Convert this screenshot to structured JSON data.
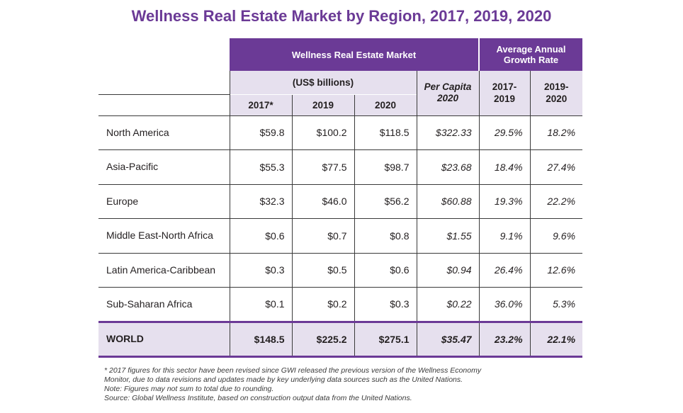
{
  "title": "Wellness Real Estate Market by Region, 2017, 2019, 2020",
  "colors": {
    "accent": "#6b3a96",
    "header_light": "#e6e0ee"
  },
  "header": {
    "group1": "Wellness Real Estate Market",
    "group2": "Average Annual Growth Rate",
    "units": "(US$ billions)",
    "per_capita": "Per Capita 2020",
    "y2017": "2017*",
    "y2019": "2019",
    "y2020": "2020",
    "g1719": "2017-2019",
    "g1920": "2019-2020"
  },
  "rows": [
    {
      "region": "North America",
      "v2017": "$59.8",
      "v2019": "$100.2",
      "v2020": "$118.5",
      "per_capita": "$322.33",
      "g1719": "29.5%",
      "g1920": "18.2%"
    },
    {
      "region": "Asia-Pacific",
      "v2017": "$55.3",
      "v2019": "$77.5",
      "v2020": "$98.7",
      "per_capita": "$23.68",
      "g1719": "18.4%",
      "g1920": "27.4%"
    },
    {
      "region": "Europe",
      "v2017": "$32.3",
      "v2019": "$46.0",
      "v2020": "$56.2",
      "per_capita": "$60.88",
      "g1719": "19.3%",
      "g1920": "22.2%"
    },
    {
      "region": "Middle East-North Africa",
      "v2017": "$0.6",
      "v2019": "$0.7",
      "v2020": "$0.8",
      "per_capita": "$1.55",
      "g1719": "9.1%",
      "g1920": "9.6%"
    },
    {
      "region": "Latin America-Caribbean",
      "v2017": "$0.3",
      "v2019": "$0.5",
      "v2020": "$0.6",
      "per_capita": "$0.94",
      "g1719": "26.4%",
      "g1920": "12.6%"
    },
    {
      "region": "Sub-Saharan Africa",
      "v2017": "$0.1",
      "v2019": "$0.2",
      "v2020": "$0.3",
      "per_capita": "$0.22",
      "g1719": "36.0%",
      "g1920": "5.3%"
    }
  ],
  "world": {
    "region": "WORLD",
    "v2017": "$148.5",
    "v2019": "$225.2",
    "v2020": "$275.1",
    "per_capita": "$35.47",
    "g1719": "23.2%",
    "g1920": "22.1%"
  },
  "footnotes": [
    "* 2017 figures for this sector have been revised since GWI released the previous version of the Wellness Economy",
    "Monitor, due to data revisions and updates made by key underlying data sources such as the United Nations.",
    "Note: Figures may not sum to total due to rounding.",
    "Source: Global Wellness Institute, based on construction output data from the United Nations."
  ],
  "chart_data": {
    "type": "table",
    "title": "Wellness Real Estate Market by Region, 2017, 2019, 2020",
    "columns": [
      "2017*",
      "2019",
      "2020",
      "Per Capita 2020",
      "2017-2019",
      "2019-2020"
    ],
    "rows": [
      [
        "North America",
        59.8,
        100.2,
        118.5,
        322.33,
        29.5,
        18.2
      ],
      [
        "Asia-Pacific",
        55.3,
        77.5,
        98.7,
        23.68,
        18.4,
        27.4
      ],
      [
        "Europe",
        32.3,
        46.0,
        56.2,
        60.88,
        19.3,
        22.2
      ],
      [
        "Middle East-North Africa",
        0.6,
        0.7,
        0.8,
        1.55,
        9.1,
        9.6
      ],
      [
        "Latin America-Caribbean",
        0.3,
        0.5,
        0.6,
        0.94,
        26.4,
        12.6
      ],
      [
        "Sub-Saharan Africa",
        0.1,
        0.2,
        0.3,
        0.22,
        36.0,
        5.3
      ],
      [
        "WORLD",
        148.5,
        225.2,
        275.1,
        35.47,
        23.2,
        22.1
      ]
    ]
  }
}
